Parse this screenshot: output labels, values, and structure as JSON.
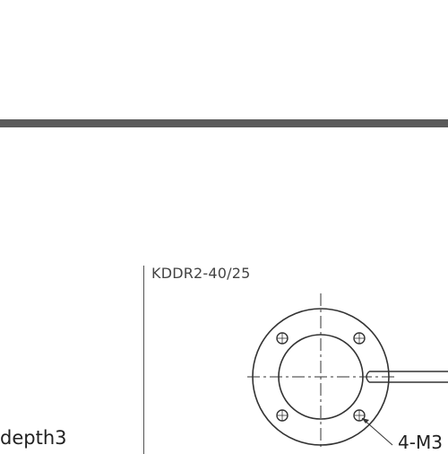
{
  "drawing": {
    "model_label": "KDDR2-40/25",
    "depth_label": "depth3",
    "thread_label": "4-M3"
  },
  "colors": {
    "divider": "#5a5a5a",
    "line": "#333333"
  }
}
